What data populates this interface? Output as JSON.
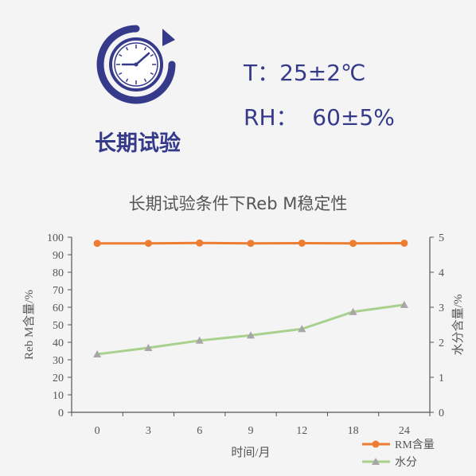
{
  "header": {
    "label": "长期试验",
    "condition_t": "T：25±2℃",
    "condition_rh": "RH：  60±5%",
    "clock_color": "#363a8b"
  },
  "chart_data": {
    "type": "line",
    "title": "长期试验条件下Reb M稳定性",
    "xlabel": "时间/月",
    "ylabel": "Reb M含量/%",
    "y2label": "水分含量/%",
    "categories": [
      "0",
      "3",
      "6",
      "9",
      "12",
      "18",
      "24"
    ],
    "ylim": [
      0,
      100
    ],
    "y2lim": [
      0,
      5
    ],
    "yticks": [
      "0",
      "10",
      "20",
      "30",
      "40",
      "50",
      "60",
      "70",
      "80",
      "90",
      "100"
    ],
    "y2ticks": [
      "0",
      "1",
      "2",
      "3",
      "4",
      "5"
    ],
    "grid": false,
    "legend_position": "bottom-right",
    "series": [
      {
        "name": "RM含量",
        "axis": "left",
        "color": "#ed7d31",
        "marker": "circle",
        "values": [
          96.5,
          96.5,
          96.7,
          96.5,
          96.6,
          96.5,
          96.6
        ]
      },
      {
        "name": "水分",
        "axis": "right",
        "color": "#a9d18e",
        "marker": "triangle",
        "values": [
          1.66,
          1.84,
          2.05,
          2.2,
          2.38,
          2.87,
          3.07
        ]
      }
    ]
  }
}
